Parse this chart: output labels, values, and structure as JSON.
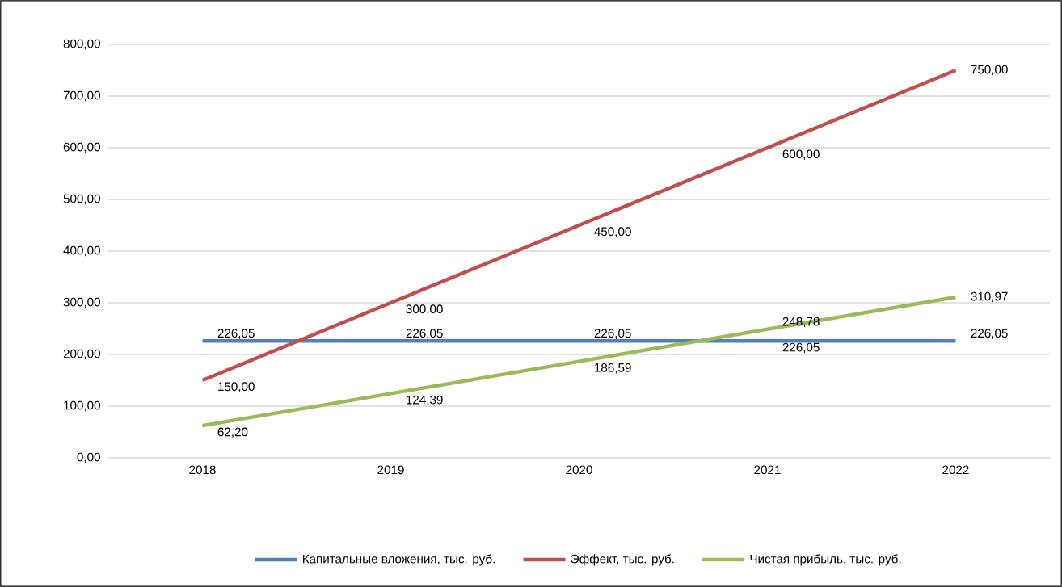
{
  "chart_data": {
    "type": "line",
    "categories": [
      "2018",
      "2019",
      "2020",
      "2021",
      "2022"
    ],
    "series": [
      {
        "name": "Капитальные вложения, тыс. руб.",
        "color": "#4f81bd",
        "values": [
          226.05,
          226.05,
          226.05,
          226.05,
          226.05
        ],
        "value_labels": [
          "226,05",
          "226,05",
          "226,05",
          "226,05",
          "226,05"
        ]
      },
      {
        "name": "Эффект, тыс. руб.",
        "color": "#c0504d",
        "values": [
          150,
          300,
          450,
          600,
          750
        ],
        "value_labels": [
          "150,00",
          "300,00",
          "450,00",
          "600,00",
          "750,00"
        ]
      },
      {
        "name": "Чистая прибыль, тыс. руб.",
        "color": "#9bbb59",
        "values": [
          62.2,
          124.39,
          186.59,
          248.78,
          310.97
        ],
        "value_labels": [
          "62,20",
          "124,39",
          "186,59",
          "248,78",
          "310,97"
        ]
      }
    ],
    "ylim": [
      0,
      800
    ],
    "yticks": [
      {
        "value": 0,
        "label": "0,00"
      },
      {
        "value": 100,
        "label": "100,00"
      },
      {
        "value": 200,
        "label": "200,00"
      },
      {
        "value": 300,
        "label": "300,00"
      },
      {
        "value": 400,
        "label": "400,00"
      },
      {
        "value": 500,
        "label": "500,00"
      },
      {
        "value": 600,
        "label": "600,00"
      },
      {
        "value": 700,
        "label": "700,00"
      },
      {
        "value": 800,
        "label": "800,00"
      }
    ],
    "grid": "y",
    "legend": "bottom"
  }
}
